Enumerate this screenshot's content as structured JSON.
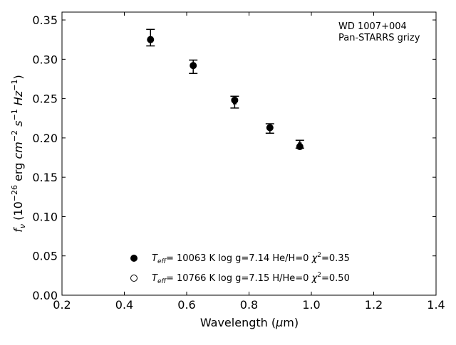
{
  "chart_data": {
    "type": "scatter",
    "title": "",
    "xlabel": "Wavelength (μm)",
    "ylabel": "f_ν (10^−26 erg cm^−2 s^−1 Hz^−1)",
    "xlim": [
      0.2,
      1.4
    ],
    "ylim": [
      0.0,
      0.36
    ],
    "xticks": [
      0.2,
      0.4,
      0.6,
      0.8,
      1.0,
      1.2,
      1.4
    ],
    "xtick_labels": [
      "0.2",
      "0.4",
      "0.6",
      "0.8",
      "1.0",
      "1.2",
      "1.4"
    ],
    "yticks": [
      0.0,
      0.05,
      0.1,
      0.15,
      0.2,
      0.25,
      0.3,
      0.35
    ],
    "ytick_labels": [
      "0.00",
      "0.05",
      "0.10",
      "0.15",
      "0.20",
      "0.25",
      "0.30",
      "0.35"
    ],
    "grid": false,
    "annotation": {
      "line1": "WD 1007+004",
      "line2": "Pan-STARRS grizy"
    },
    "observed": {
      "x": [
        0.484,
        0.621,
        0.754,
        0.867,
        0.963
      ],
      "y": [
        0.327,
        0.291,
        0.245,
        0.212,
        0.192
      ],
      "yerr_low": [
        0.01,
        0.009,
        0.007,
        0.006,
        0.005
      ],
      "yerr_high": [
        0.011,
        0.008,
        0.008,
        0.006,
        0.005
      ]
    },
    "series": [
      {
        "name": "T_eff= 10063 K  log g=7.14  He/H=0  χ²=0.35",
        "marker": "filled-circle",
        "x": [
          0.484,
          0.621,
          0.754,
          0.867,
          0.963
        ],
        "y": [
          0.325,
          0.292,
          0.248,
          0.213,
          0.189
        ]
      },
      {
        "name": "T_eff= 10766 K  log g=7.15  H/He=0  χ²=0.50",
        "marker": "open-circle",
        "x": [],
        "y": []
      }
    ],
    "legend_position": "bottom-center"
  }
}
